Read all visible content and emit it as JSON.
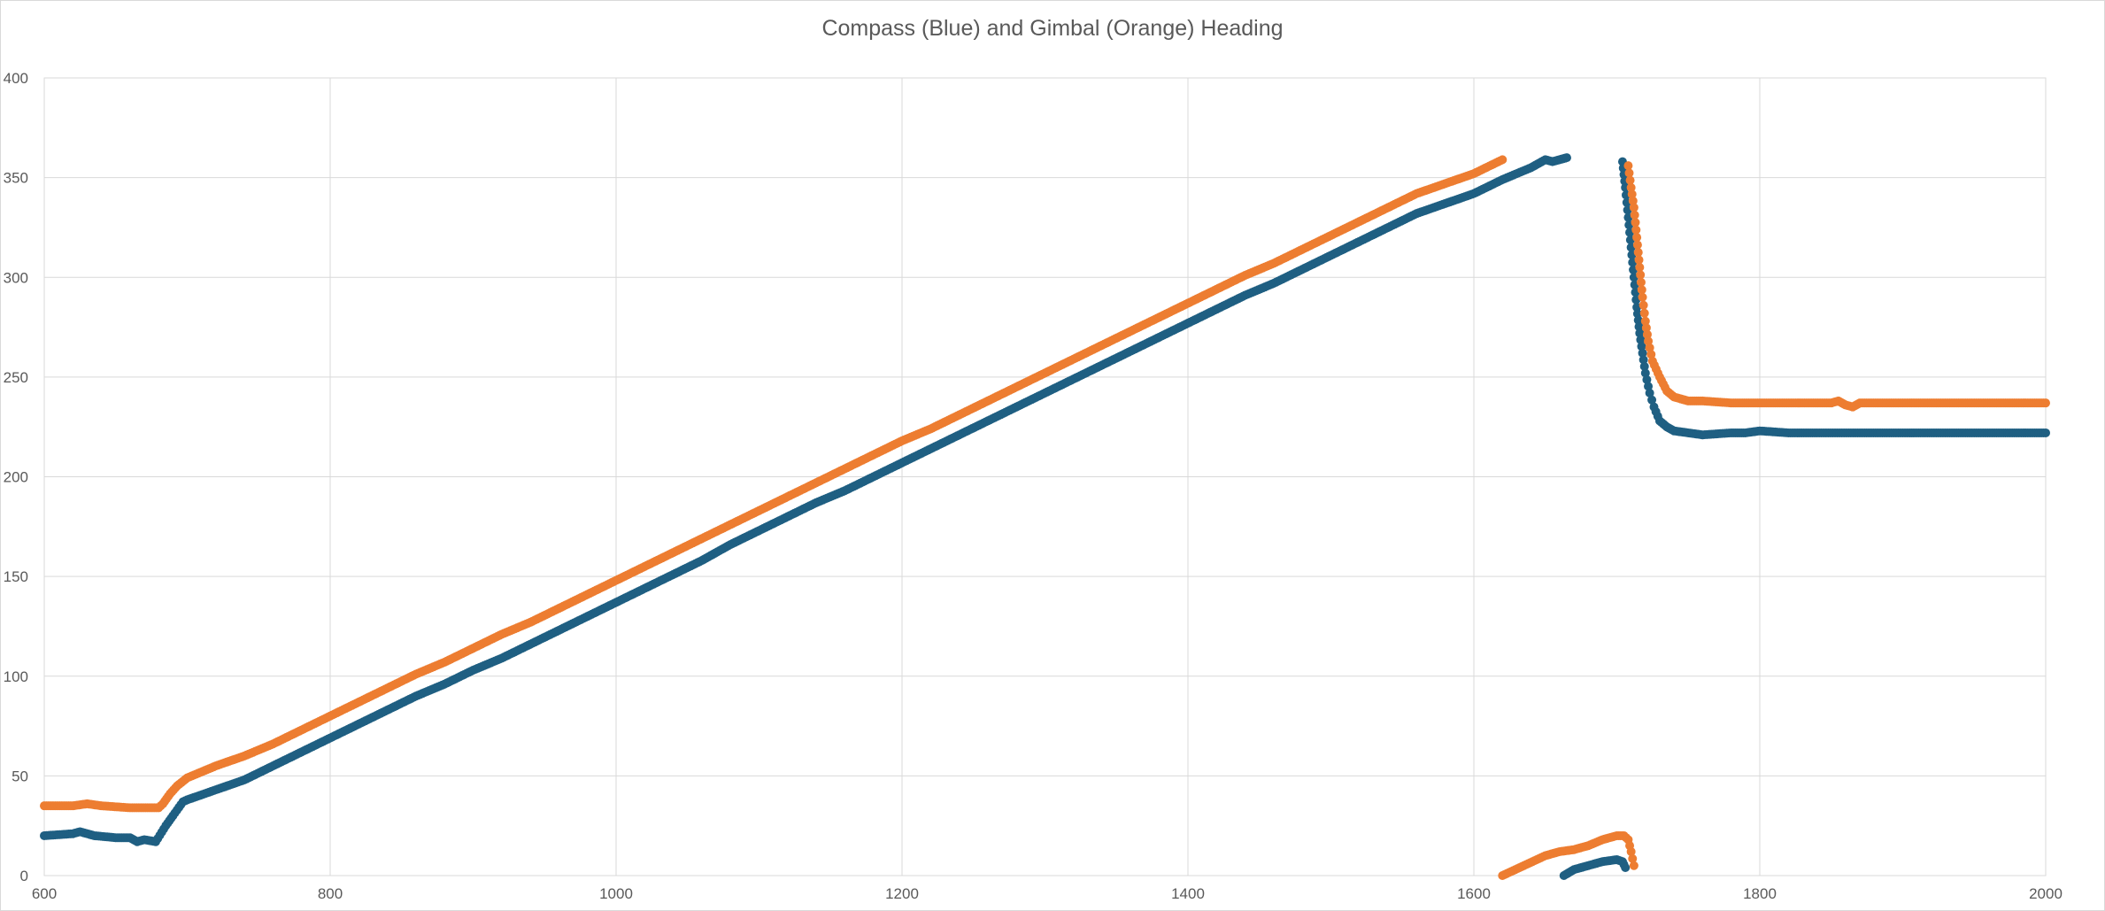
{
  "chart_data": {
    "type": "scatter",
    "title": "Compass (Blue) and Gimbal (Orange) Heading",
    "xlabel": "",
    "ylabel": "",
    "xlim": [
      600,
      2000
    ],
    "ylim": [
      0,
      400
    ],
    "x_ticks": [
      "600",
      "800",
      "1000",
      "1200",
      "1400",
      "1600",
      "1800",
      "2000"
    ],
    "y_ticks": [
      "0",
      "50",
      "100",
      "150",
      "200",
      "250",
      "300",
      "350",
      "400"
    ],
    "grid": true,
    "legend": "none",
    "series": [
      {
        "color": "#1f5f82",
        "segments": [
          [
            [
              600,
              20
            ],
            [
              620,
              21
            ],
            [
              625,
              22
            ],
            [
              635,
              20
            ],
            [
              650,
              19
            ],
            [
              660,
              19
            ],
            [
              665,
              17
            ],
            [
              670,
              18
            ],
            [
              678,
              17
            ],
            [
              685,
              25
            ],
            [
              690,
              30
            ],
            [
              697,
              37
            ],
            [
              700,
              38
            ],
            [
              720,
              43
            ],
            [
              740,
              48
            ],
            [
              760,
              55
            ],
            [
              780,
              62
            ],
            [
              800,
              69
            ],
            [
              820,
              76
            ],
            [
              840,
              83
            ],
            [
              860,
              90
            ],
            [
              880,
              96
            ],
            [
              900,
              103
            ],
            [
              920,
              109
            ],
            [
              940,
              116
            ],
            [
              960,
              123
            ],
            [
              980,
              130
            ],
            [
              1000,
              137
            ],
            [
              1020,
              144
            ],
            [
              1040,
              151
            ],
            [
              1060,
              158
            ],
            [
              1080,
              166
            ],
            [
              1100,
              173
            ],
            [
              1120,
              180
            ],
            [
              1140,
              187
            ],
            [
              1160,
              193
            ],
            [
              1180,
              200
            ],
            [
              1200,
              207
            ],
            [
              1220,
              214
            ],
            [
              1240,
              221
            ],
            [
              1260,
              228
            ],
            [
              1280,
              235
            ],
            [
              1300,
              242
            ],
            [
              1320,
              249
            ],
            [
              1340,
              256
            ],
            [
              1360,
              263
            ],
            [
              1380,
              270
            ],
            [
              1400,
              277
            ],
            [
              1420,
              284
            ],
            [
              1440,
              291
            ],
            [
              1460,
              297
            ],
            [
              1480,
              304
            ],
            [
              1500,
              311
            ],
            [
              1520,
              318
            ],
            [
              1540,
              325
            ],
            [
              1560,
              332
            ],
            [
              1580,
              337
            ],
            [
              1600,
              342
            ],
            [
              1620,
              349
            ],
            [
              1640,
              355
            ],
            [
              1650,
              359
            ],
            [
              1655,
              358
            ],
            [
              1660,
              359
            ],
            [
              1665,
              360
            ]
          ],
          [
            [
              1704,
              358
            ],
            [
              1706,
              345
            ],
            [
              1708,
              330
            ],
            [
              1710,
              315
            ],
            [
              1712,
              300
            ],
            [
              1714,
              285
            ],
            [
              1716,
              272
            ],
            [
              1718,
              262
            ],
            [
              1720,
              252
            ],
            [
              1723,
              242
            ],
            [
              1726,
              235
            ],
            [
              1730,
              228
            ],
            [
              1735,
              225
            ],
            [
              1740,
              223
            ],
            [
              1750,
              222
            ],
            [
              1760,
              221
            ],
            [
              1780,
              222
            ],
            [
              1790,
              222
            ],
            [
              1800,
              223
            ],
            [
              1820,
              222
            ],
            [
              1840,
              222
            ],
            [
              1900,
              222
            ],
            [
              1950,
              222
            ],
            [
              2000,
              222
            ]
          ],
          [
            [
              1663,
              0
            ],
            [
              1670,
              3
            ],
            [
              1680,
              5
            ],
            [
              1690,
              7
            ],
            [
              1700,
              8
            ],
            [
              1704,
              7
            ],
            [
              1706,
              4
            ]
          ]
        ]
      },
      {
        "color": "#ed7d31",
        "segments": [
          [
            [
              600,
              35
            ],
            [
              620,
              35
            ],
            [
              630,
              36
            ],
            [
              640,
              35
            ],
            [
              660,
              34
            ],
            [
              680,
              34
            ],
            [
              683,
              36
            ],
            [
              688,
              41
            ],
            [
              693,
              45
            ],
            [
              700,
              49
            ],
            [
              720,
              55
            ],
            [
              740,
              60
            ],
            [
              760,
              66
            ],
            [
              780,
              73
            ],
            [
              800,
              80
            ],
            [
              820,
              87
            ],
            [
              840,
              94
            ],
            [
              860,
              101
            ],
            [
              880,
              107
            ],
            [
              900,
              114
            ],
            [
              920,
              121
            ],
            [
              940,
              127
            ],
            [
              960,
              134
            ],
            [
              980,
              141
            ],
            [
              1000,
              148
            ],
            [
              1020,
              155
            ],
            [
              1040,
              162
            ],
            [
              1060,
              169
            ],
            [
              1080,
              176
            ],
            [
              1100,
              183
            ],
            [
              1120,
              190
            ],
            [
              1140,
              197
            ],
            [
              1160,
              204
            ],
            [
              1180,
              211
            ],
            [
              1200,
              218
            ],
            [
              1220,
              224
            ],
            [
              1240,
              231
            ],
            [
              1260,
              238
            ],
            [
              1280,
              245
            ],
            [
              1300,
              252
            ],
            [
              1320,
              259
            ],
            [
              1340,
              266
            ],
            [
              1360,
              273
            ],
            [
              1380,
              280
            ],
            [
              1400,
              287
            ],
            [
              1420,
              294
            ],
            [
              1440,
              301
            ],
            [
              1460,
              307
            ],
            [
              1480,
              314
            ],
            [
              1500,
              321
            ],
            [
              1520,
              328
            ],
            [
              1540,
              335
            ],
            [
              1560,
              342
            ],
            [
              1580,
              347
            ],
            [
              1600,
              352
            ],
            [
              1620,
              359
            ]
          ],
          [
            [
              1708,
              356
            ],
            [
              1710,
              345
            ],
            [
              1712,
              335
            ],
            [
              1714,
              320
            ],
            [
              1716,
              305
            ],
            [
              1718,
              290
            ],
            [
              1720,
              278
            ],
            [
              1722,
              268
            ],
            [
              1725,
              258
            ],
            [
              1730,
              250
            ],
            [
              1735,
              243
            ],
            [
              1740,
              240
            ],
            [
              1745,
              239
            ],
            [
              1750,
              238
            ],
            [
              1760,
              238
            ],
            [
              1780,
              237
            ],
            [
              1800,
              237
            ],
            [
              1850,
              237
            ],
            [
              1855,
              238
            ],
            [
              1860,
              236
            ],
            [
              1865,
              235
            ],
            [
              1870,
              237
            ],
            [
              1900,
              237
            ],
            [
              1950,
              237
            ],
            [
              2000,
              237
            ]
          ],
          [
            [
              1620,
              0
            ],
            [
              1635,
              5
            ],
            [
              1650,
              10
            ],
            [
              1660,
              12
            ],
            [
              1670,
              13
            ],
            [
              1680,
              15
            ],
            [
              1690,
              18
            ],
            [
              1700,
              20
            ],
            [
              1705,
              20
            ],
            [
              1708,
              18
            ],
            [
              1710,
              12
            ],
            [
              1712,
              5
            ]
          ]
        ]
      }
    ]
  }
}
